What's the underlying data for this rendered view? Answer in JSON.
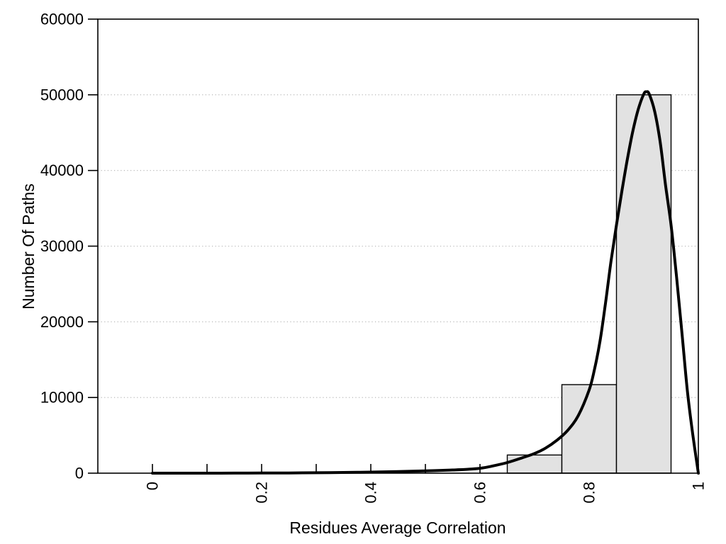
{
  "figure": {
    "background": "#ffffff",
    "title": ""
  },
  "chart_data": {
    "type": "bar",
    "subtype": "histogram-with-fit-curve",
    "title": "",
    "xlabel": "Residues Average Correlation",
    "ylabel": "Number Of Paths",
    "xlim": [
      -0.1,
      1.0
    ],
    "ylim": [
      0,
      60000
    ],
    "x_major_ticks": [
      0,
      0.2,
      0.4,
      0.6,
      0.8,
      1
    ],
    "x_major_tick_labels": [
      "0",
      "0.2",
      "0.4",
      "0.6",
      "0.8",
      "1"
    ],
    "x_minor_ticks": [
      0.1,
      0.3,
      0.5,
      0.7,
      0.9
    ],
    "y_ticks": [
      0,
      10000,
      20000,
      30000,
      40000,
      50000,
      60000
    ],
    "y_tick_labels": [
      "0",
      "10000",
      "20000",
      "30000",
      "40000",
      "50000",
      "60000"
    ],
    "grid": {
      "horizontal_dotted": true,
      "vertical": false,
      "values": [
        10000,
        20000,
        30000,
        40000,
        50000
      ]
    },
    "legend": null,
    "bin_width": 0.1,
    "bars": [
      {
        "x_start": 0.65,
        "x_end": 0.75,
        "value": 2400
      },
      {
        "x_start": 0.75,
        "x_end": 0.85,
        "value": 11700
      },
      {
        "x_start": 0.85,
        "x_end": 0.95,
        "value": 50000
      }
    ],
    "curve": {
      "name": "fit-density-curve",
      "peak": {
        "x": 0.905,
        "value": 50400
      },
      "points": [
        [
          0.0,
          0
        ],
        [
          0.05,
          0
        ],
        [
          0.1,
          0
        ],
        [
          0.15,
          5
        ],
        [
          0.2,
          15
        ],
        [
          0.25,
          30
        ],
        [
          0.3,
          55
        ],
        [
          0.35,
          90
        ],
        [
          0.4,
          140
        ],
        [
          0.45,
          215
        ],
        [
          0.5,
          300
        ],
        [
          0.55,
          420
        ],
        [
          0.58,
          520
        ],
        [
          0.6,
          650
        ],
        [
          0.62,
          900
        ],
        [
          0.65,
          1400
        ],
        [
          0.68,
          2100
        ],
        [
          0.7,
          2600
        ],
        [
          0.72,
          3300
        ],
        [
          0.74,
          4300
        ],
        [
          0.76,
          5600
        ],
        [
          0.78,
          7600
        ],
        [
          0.8,
          11000
        ],
        [
          0.81,
          13800
        ],
        [
          0.82,
          17500
        ],
        [
          0.83,
          22500
        ],
        [
          0.84,
          28000
        ],
        [
          0.85,
          32800
        ],
        [
          0.86,
          37300
        ],
        [
          0.87,
          41500
        ],
        [
          0.88,
          45200
        ],
        [
          0.89,
          48100
        ],
        [
          0.9,
          50100
        ],
        [
          0.905,
          50400
        ],
        [
          0.91,
          50100
        ],
        [
          0.92,
          47800
        ],
        [
          0.93,
          43800
        ],
        [
          0.94,
          38000
        ],
        [
          0.95,
          32800
        ],
        [
          0.96,
          26000
        ],
        [
          0.97,
          18500
        ],
        [
          0.98,
          10800
        ],
        [
          0.99,
          5000
        ],
        [
          1.0,
          0
        ]
      ]
    },
    "colors": {
      "bar_fill": "#e2e2e2",
      "bar_border": "#000000",
      "curve": "#000000",
      "grid": "#b0b0b0",
      "frame": "#000000",
      "text": "#000000",
      "background": "#ffffff"
    }
  }
}
